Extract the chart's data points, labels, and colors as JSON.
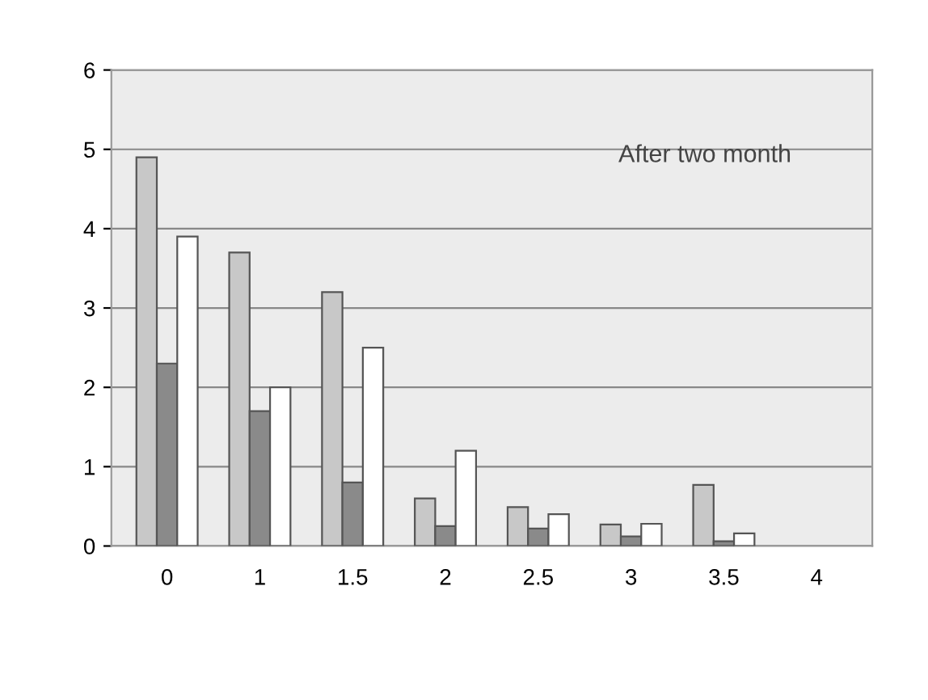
{
  "chart_data": {
    "type": "bar",
    "annotations": [
      "After two month"
    ],
    "categories": [
      "0",
      "1",
      "1.5",
      "2",
      "2.5",
      "3",
      "3.5",
      "4"
    ],
    "series": [
      {
        "color": "#c8c8c8",
        "values": [
          4.9,
          3.7,
          3.2,
          0.6,
          0.49,
          0.27,
          0.77,
          null
        ]
      },
      {
        "color": "#8a8a8a",
        "values": [
          2.3,
          1.7,
          0.8,
          0.25,
          0.22,
          0.12,
          0.06,
          null
        ]
      },
      {
        "color": "#ffffff",
        "values": [
          3.9,
          2.0,
          2.5,
          1.2,
          0.4,
          0.28,
          0.16,
          null
        ]
      }
    ],
    "ylim": [
      0,
      6
    ],
    "yticks": [
      0,
      1,
      2,
      3,
      4,
      5,
      6
    ],
    "grid": "y"
  }
}
